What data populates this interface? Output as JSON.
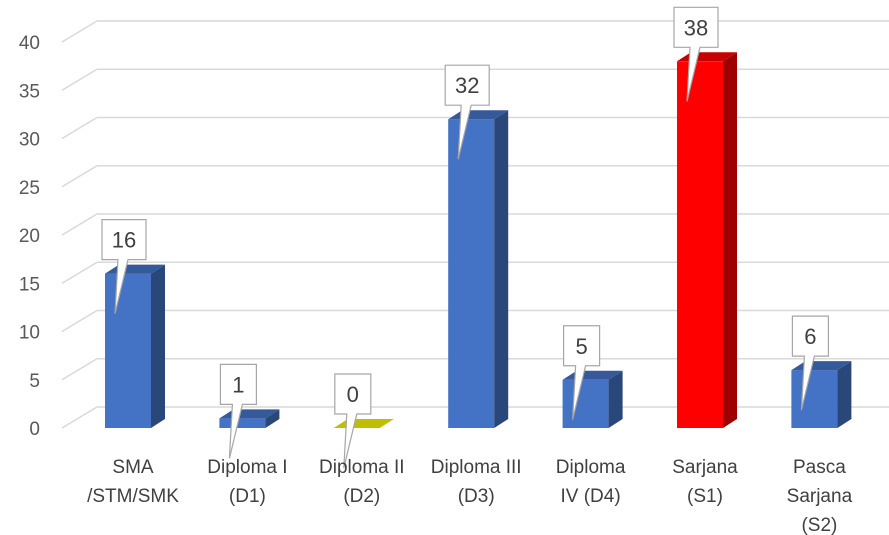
{
  "chart_data": {
    "type": "bar",
    "categories": [
      [
        "SMA",
        "/STM/SMK"
      ],
      [
        "Diploma I",
        "(D1)"
      ],
      [
        "Diploma II",
        "(D2)"
      ],
      [
        "Diploma III",
        "(D3)"
      ],
      [
        "Diploma",
        "IV (D4)"
      ],
      [
        "Sarjana",
        "(S1)"
      ],
      [
        "Pasca",
        "Sarjana",
        "(S2)"
      ]
    ],
    "values": [
      16,
      1,
      0,
      32,
      5,
      38,
      6
    ],
    "data_labels": [
      "16",
      "1",
      "0",
      "32",
      "5",
      "38",
      "6"
    ],
    "yticks": [
      "0",
      "5",
      "10",
      "15",
      "20",
      "25",
      "30",
      "35",
      "40"
    ],
    "ylim": [
      0,
      42
    ],
    "grid": true,
    "style": "3d-column",
    "colors": {
      "default": "#4472C4",
      "highlight": "#FF0000",
      "zero": "#BFBF00",
      "gridline": "#D9D9D9"
    },
    "bar_colors": [
      "default",
      "default",
      "zero",
      "default",
      "default",
      "highlight",
      "default"
    ]
  }
}
